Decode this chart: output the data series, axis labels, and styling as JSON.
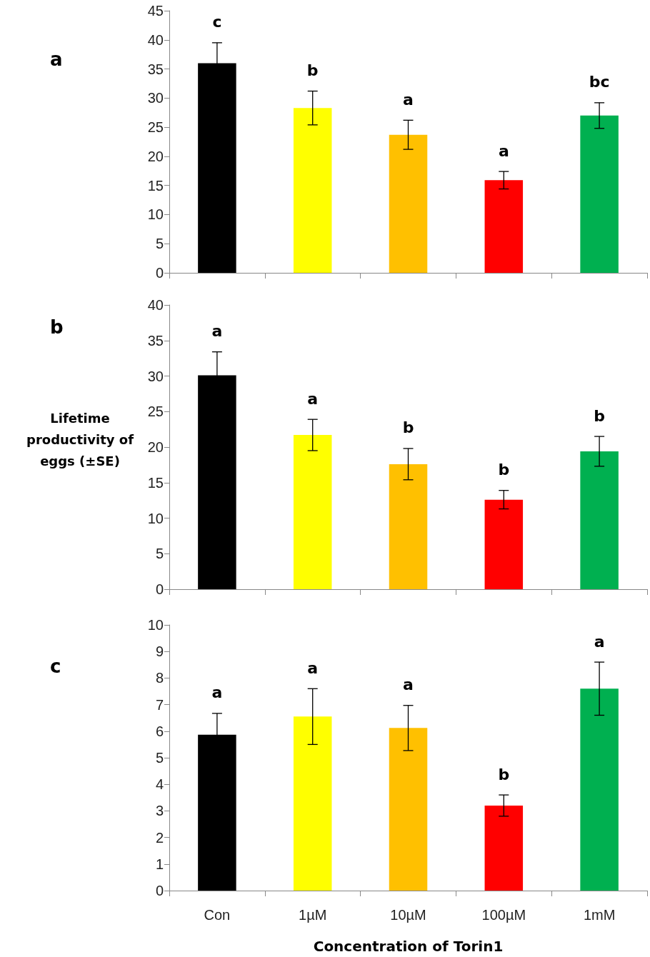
{
  "chart_data": [
    {
      "type": "bar",
      "title": "a",
      "categories": [
        null,
        null,
        null,
        null,
        null
      ],
      "values": [
        36,
        28.3,
        23.7,
        15.9,
        27
      ],
      "colors": [
        "#000000",
        "#ffff00",
        "#ffc000",
        "#ff0000",
        "#00b050"
      ],
      "errors": [
        3.5,
        2.9,
        2.5,
        1.5,
        2.2
      ],
      "ylim": [
        0,
        45
      ],
      "yticks": [
        0,
        5,
        10,
        15,
        20,
        25,
        30,
        35,
        40,
        45
      ],
      "tick_labels": "y",
      "annotations": [
        "c",
        "b",
        "a",
        "a",
        "bc"
      ]
    },
    {
      "type": "bar",
      "title": "b",
      "ylabel": "Lifetime productivity of eggs (±SE)",
      "categories": [
        null,
        null,
        null,
        null,
        null
      ],
      "values": [
        30.1,
        21.7,
        17.6,
        12.6,
        19.4
      ],
      "colors": [
        "#000000",
        "#ffff00",
        "#ffc000",
        "#ff0000",
        "#00b050"
      ],
      "errors": [
        3.3,
        2.2,
        2.2,
        1.3,
        2.1
      ],
      "ylim": [
        0,
        40
      ],
      "yticks": [
        0,
        5,
        10,
        15,
        20,
        25,
        30,
        35,
        40
      ],
      "tick_labels": "y",
      "annotations": [
        "a",
        "a",
        "b",
        "b",
        "b"
      ]
    },
    {
      "type": "bar",
      "title": "c",
      "xlabel": "Concentration of Torin1",
      "categories": [
        "Con",
        "1µM",
        "10µM",
        "100µM",
        "1mM"
      ],
      "values": [
        5.87,
        6.55,
        6.12,
        3.2,
        7.6
      ],
      "colors": [
        "#000000",
        "#ffff00",
        "#ffc000",
        "#ff0000",
        "#00b050"
      ],
      "errors": [
        0.8,
        1.05,
        0.85,
        0.4,
        1
      ],
      "ylim": [
        0,
        10
      ],
      "yticks": [
        0,
        1,
        2,
        3,
        4,
        5,
        6,
        7,
        8,
        9,
        10
      ],
      "annotations": [
        "a",
        "a",
        "a",
        "b",
        "a"
      ]
    }
  ]
}
